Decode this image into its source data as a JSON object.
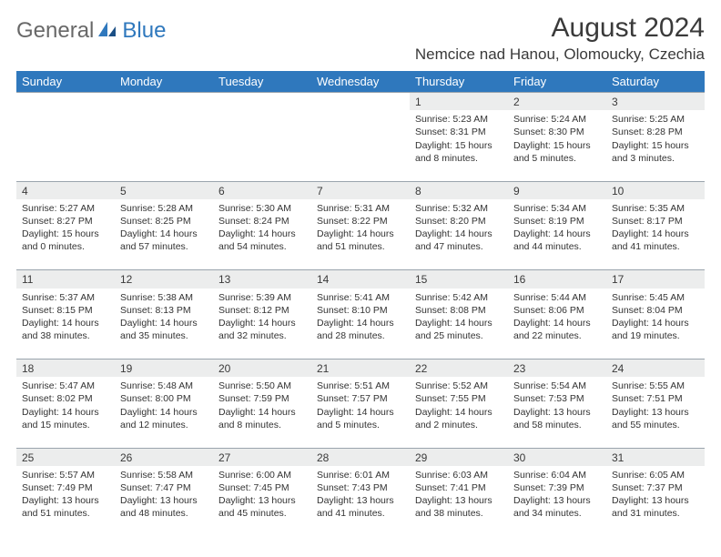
{
  "logo": {
    "part1": "General",
    "part2": "Blue"
  },
  "title": "August 2024",
  "location": "Nemcice nad Hanou, Olomoucky, Czechia",
  "colors": {
    "header_bg": "#2f78bd",
    "header_fg": "#ffffff",
    "daybar_bg": "#eceded",
    "border": "#9aa4ad",
    "text": "#333333",
    "logo_gray": "#686868",
    "logo_blue": "#2f78bd",
    "page_bg": "#ffffff"
  },
  "fonts": {
    "title_size": 30,
    "location_size": 17,
    "weekday_size": 13,
    "daynum_size": 12,
    "body_size": 10.5
  },
  "weekdays": [
    "Sunday",
    "Monday",
    "Tuesday",
    "Wednesday",
    "Thursday",
    "Friday",
    "Saturday"
  ],
  "weeks": [
    [
      null,
      null,
      null,
      null,
      {
        "n": "1",
        "sr": "Sunrise: 5:23 AM",
        "ss": "Sunset: 8:31 PM",
        "dl": "Daylight: 15 hours and 8 minutes."
      },
      {
        "n": "2",
        "sr": "Sunrise: 5:24 AM",
        "ss": "Sunset: 8:30 PM",
        "dl": "Daylight: 15 hours and 5 minutes."
      },
      {
        "n": "3",
        "sr": "Sunrise: 5:25 AM",
        "ss": "Sunset: 8:28 PM",
        "dl": "Daylight: 15 hours and 3 minutes."
      }
    ],
    [
      {
        "n": "4",
        "sr": "Sunrise: 5:27 AM",
        "ss": "Sunset: 8:27 PM",
        "dl": "Daylight: 15 hours and 0 minutes."
      },
      {
        "n": "5",
        "sr": "Sunrise: 5:28 AM",
        "ss": "Sunset: 8:25 PM",
        "dl": "Daylight: 14 hours and 57 minutes."
      },
      {
        "n": "6",
        "sr": "Sunrise: 5:30 AM",
        "ss": "Sunset: 8:24 PM",
        "dl": "Daylight: 14 hours and 54 minutes."
      },
      {
        "n": "7",
        "sr": "Sunrise: 5:31 AM",
        "ss": "Sunset: 8:22 PM",
        "dl": "Daylight: 14 hours and 51 minutes."
      },
      {
        "n": "8",
        "sr": "Sunrise: 5:32 AM",
        "ss": "Sunset: 8:20 PM",
        "dl": "Daylight: 14 hours and 47 minutes."
      },
      {
        "n": "9",
        "sr": "Sunrise: 5:34 AM",
        "ss": "Sunset: 8:19 PM",
        "dl": "Daylight: 14 hours and 44 minutes."
      },
      {
        "n": "10",
        "sr": "Sunrise: 5:35 AM",
        "ss": "Sunset: 8:17 PM",
        "dl": "Daylight: 14 hours and 41 minutes."
      }
    ],
    [
      {
        "n": "11",
        "sr": "Sunrise: 5:37 AM",
        "ss": "Sunset: 8:15 PM",
        "dl": "Daylight: 14 hours and 38 minutes."
      },
      {
        "n": "12",
        "sr": "Sunrise: 5:38 AM",
        "ss": "Sunset: 8:13 PM",
        "dl": "Daylight: 14 hours and 35 minutes."
      },
      {
        "n": "13",
        "sr": "Sunrise: 5:39 AM",
        "ss": "Sunset: 8:12 PM",
        "dl": "Daylight: 14 hours and 32 minutes."
      },
      {
        "n": "14",
        "sr": "Sunrise: 5:41 AM",
        "ss": "Sunset: 8:10 PM",
        "dl": "Daylight: 14 hours and 28 minutes."
      },
      {
        "n": "15",
        "sr": "Sunrise: 5:42 AM",
        "ss": "Sunset: 8:08 PM",
        "dl": "Daylight: 14 hours and 25 minutes."
      },
      {
        "n": "16",
        "sr": "Sunrise: 5:44 AM",
        "ss": "Sunset: 8:06 PM",
        "dl": "Daylight: 14 hours and 22 minutes."
      },
      {
        "n": "17",
        "sr": "Sunrise: 5:45 AM",
        "ss": "Sunset: 8:04 PM",
        "dl": "Daylight: 14 hours and 19 minutes."
      }
    ],
    [
      {
        "n": "18",
        "sr": "Sunrise: 5:47 AM",
        "ss": "Sunset: 8:02 PM",
        "dl": "Daylight: 14 hours and 15 minutes."
      },
      {
        "n": "19",
        "sr": "Sunrise: 5:48 AM",
        "ss": "Sunset: 8:00 PM",
        "dl": "Daylight: 14 hours and 12 minutes."
      },
      {
        "n": "20",
        "sr": "Sunrise: 5:50 AM",
        "ss": "Sunset: 7:59 PM",
        "dl": "Daylight: 14 hours and 8 minutes."
      },
      {
        "n": "21",
        "sr": "Sunrise: 5:51 AM",
        "ss": "Sunset: 7:57 PM",
        "dl": "Daylight: 14 hours and 5 minutes."
      },
      {
        "n": "22",
        "sr": "Sunrise: 5:52 AM",
        "ss": "Sunset: 7:55 PM",
        "dl": "Daylight: 14 hours and 2 minutes."
      },
      {
        "n": "23",
        "sr": "Sunrise: 5:54 AM",
        "ss": "Sunset: 7:53 PM",
        "dl": "Daylight: 13 hours and 58 minutes."
      },
      {
        "n": "24",
        "sr": "Sunrise: 5:55 AM",
        "ss": "Sunset: 7:51 PM",
        "dl": "Daylight: 13 hours and 55 minutes."
      }
    ],
    [
      {
        "n": "25",
        "sr": "Sunrise: 5:57 AM",
        "ss": "Sunset: 7:49 PM",
        "dl": "Daylight: 13 hours and 51 minutes."
      },
      {
        "n": "26",
        "sr": "Sunrise: 5:58 AM",
        "ss": "Sunset: 7:47 PM",
        "dl": "Daylight: 13 hours and 48 minutes."
      },
      {
        "n": "27",
        "sr": "Sunrise: 6:00 AM",
        "ss": "Sunset: 7:45 PM",
        "dl": "Daylight: 13 hours and 45 minutes."
      },
      {
        "n": "28",
        "sr": "Sunrise: 6:01 AM",
        "ss": "Sunset: 7:43 PM",
        "dl": "Daylight: 13 hours and 41 minutes."
      },
      {
        "n": "29",
        "sr": "Sunrise: 6:03 AM",
        "ss": "Sunset: 7:41 PM",
        "dl": "Daylight: 13 hours and 38 minutes."
      },
      {
        "n": "30",
        "sr": "Sunrise: 6:04 AM",
        "ss": "Sunset: 7:39 PM",
        "dl": "Daylight: 13 hours and 34 minutes."
      },
      {
        "n": "31",
        "sr": "Sunrise: 6:05 AM",
        "ss": "Sunset: 7:37 PM",
        "dl": "Daylight: 13 hours and 31 minutes."
      }
    ]
  ]
}
